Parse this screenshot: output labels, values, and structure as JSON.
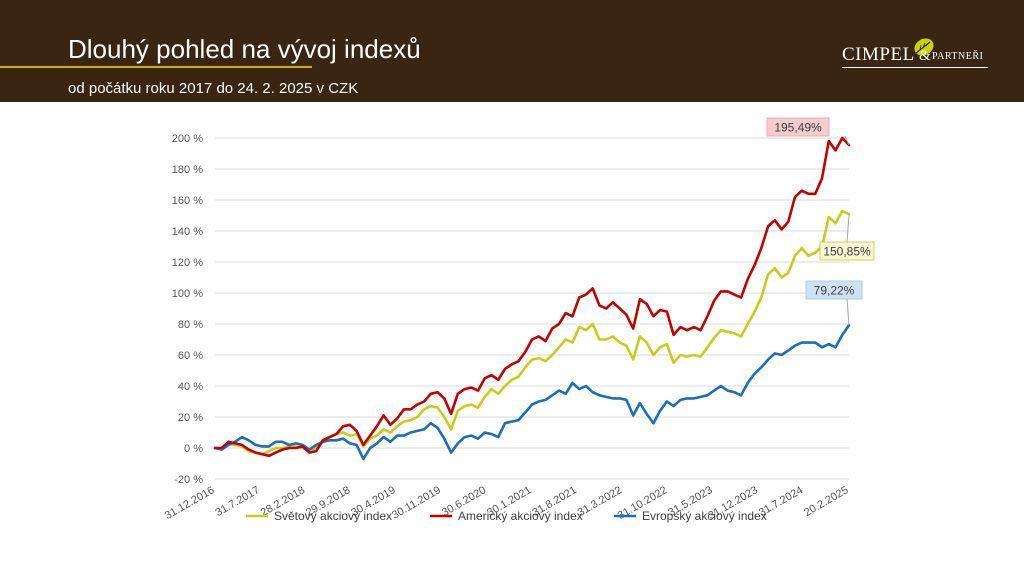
{
  "header": {
    "title": "Dlouhý pohled na vývoj indexů",
    "subtitle": "od počátku roku 2017 do 24. 2. 2025 v CZK"
  },
  "logo": {
    "name": "CIMPEL",
    "amp": "&",
    "suffix": "PARTNEŘI",
    "icon": "leaf-icon",
    "accent_color": "#c8d400"
  },
  "colors": {
    "header_bg": "#3a2412",
    "world": "#c8cc1c",
    "usa": "#c00000",
    "europe": "#1a6fb8"
  },
  "chart_data": {
    "type": "line",
    "ylim": [
      -20,
      200
    ],
    "yticks": [
      -20,
      0,
      20,
      40,
      60,
      80,
      100,
      120,
      140,
      160,
      180,
      200
    ],
    "ytick_suffix": " %",
    "xlim": [
      0,
      98
    ],
    "x_tick_labels": [
      {
        "x": 0,
        "label": "31.12.2016"
      },
      {
        "x": 7,
        "label": "31.7.2017"
      },
      {
        "x": 14,
        "label": "28.2.2018"
      },
      {
        "x": 21,
        "label": "29.9.2018"
      },
      {
        "x": 28,
        "label": "30.4.2019"
      },
      {
        "x": 35,
        "label": "30.11.2019"
      },
      {
        "x": 42,
        "label": "30.6.2020"
      },
      {
        "x": 49,
        "label": "30.1.2021"
      },
      {
        "x": 56,
        "label": "31.8.2021"
      },
      {
        "x": 63,
        "label": "31.3.2022"
      },
      {
        "x": 70,
        "label": "31.10.2022"
      },
      {
        "x": 77,
        "label": "31.5.2023"
      },
      {
        "x": 84,
        "label": "31.12.2023"
      },
      {
        "x": 91,
        "label": "31.7.2024"
      },
      {
        "x": 98,
        "label": "20.2.2025"
      }
    ],
    "series": [
      {
        "name": "Světový akciový index",
        "color": "#c8cc1c",
        "end_label": "150,85%",
        "values": [
          0,
          0,
          3,
          2,
          1,
          -2,
          -3,
          -4,
          -2,
          0,
          0,
          1,
          1,
          0,
          -2,
          0,
          5,
          7,
          9,
          10,
          8,
          9,
          1,
          6,
          8,
          12,
          10,
          14,
          17,
          18,
          20,
          25,
          27,
          26,
          20,
          12,
          24,
          27,
          28,
          26,
          33,
          38,
          35,
          40,
          44,
          46,
          52,
          57,
          58,
          56,
          60,
          65,
          70,
          68,
          78,
          76,
          80,
          70,
          70,
          72,
          68,
          66,
          57,
          72,
          68,
          60,
          65,
          67,
          55,
          60,
          59,
          60,
          59,
          65,
          71,
          76,
          75,
          74,
          72,
          80,
          88,
          97,
          112,
          116,
          110,
          113,
          124,
          129,
          124,
          126,
          130,
          149,
          145,
          153,
          150.85
        ]
      },
      {
        "name": "Americký akciový index",
        "color": "#c00000",
        "end_label": "195,49%",
        "values": [
          0,
          0,
          4,
          3,
          2,
          -1,
          -3,
          -4,
          -5,
          -3,
          -1,
          0,
          0,
          1,
          -3,
          -2,
          5,
          7,
          9,
          14,
          15,
          11,
          2,
          8,
          14,
          21,
          15,
          19,
          25,
          25,
          28,
          30,
          35,
          36,
          32,
          22,
          35,
          38,
          39,
          37,
          45,
          47,
          44,
          51,
          54,
          56,
          62,
          70,
          72,
          69,
          77,
          80,
          87,
          85,
          97,
          99,
          103,
          92,
          90,
          94,
          90,
          86,
          77,
          96,
          93,
          85,
          89,
          88,
          73,
          78,
          76,
          78,
          76,
          85,
          95,
          101,
          101,
          99,
          97,
          109,
          118,
          129,
          143,
          147,
          141,
          146,
          162,
          166,
          164,
          164,
          174,
          198,
          192,
          200,
          195.49
        ]
      },
      {
        "name": "Evropský akciový index",
        "color": "#1a6fb8",
        "end_label": "79,22%",
        "values": [
          0,
          -1,
          2,
          4,
          7,
          5,
          2,
          1,
          1,
          4,
          4,
          2,
          3,
          2,
          -1,
          2,
          4,
          5,
          5,
          6,
          3,
          2,
          -7,
          0,
          3,
          7,
          4,
          8,
          8,
          10,
          11,
          12,
          16,
          13,
          6,
          -3,
          3,
          7,
          8,
          6,
          10,
          9,
          7,
          16,
          17,
          18,
          23,
          28,
          30,
          31,
          34,
          37,
          35,
          42,
          38,
          40,
          36,
          34,
          33,
          32,
          32,
          31,
          21,
          29,
          22,
          16,
          24,
          30,
          27,
          31,
          32,
          32,
          33,
          34,
          37,
          40,
          37,
          36,
          34,
          42,
          48,
          52,
          57,
          61,
          60,
          63,
          66,
          68,
          68,
          68,
          65,
          67,
          65,
          73,
          79.22
        ]
      }
    ]
  }
}
